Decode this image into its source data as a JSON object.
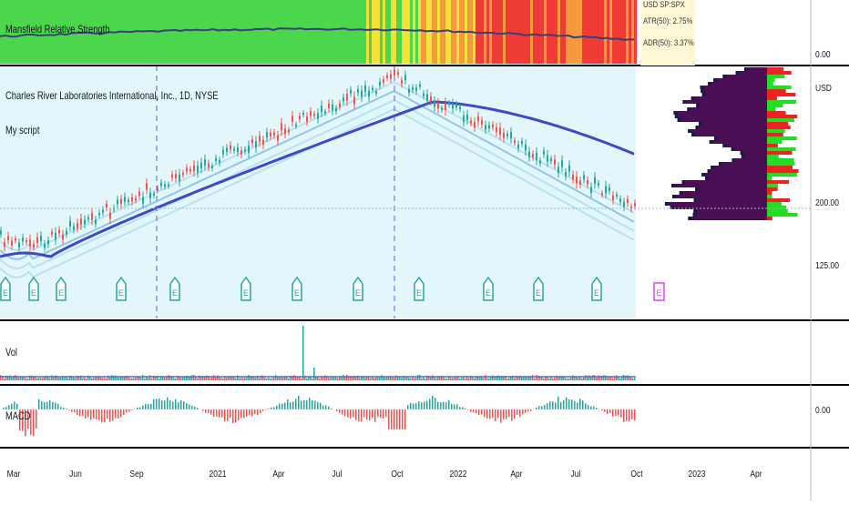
{
  "header": {
    "symbol_title": "Charles River Laboratories International, Inc., 1D, NYSE",
    "script_name": "My script"
  },
  "rs_pane": {
    "title": "Mansfield Relative Strength",
    "scale_label": "0.00",
    "info_lines": [
      "USD  SP:SPX",
      "ATR(50): 2.75%",
      "ADR(50): 3.37%"
    ],
    "colors": {
      "green": "#4cd64c",
      "yellow": "#f2e33a",
      "orange": "#f59a3c",
      "red": "#ef3b36"
    }
  },
  "price_pane": {
    "currency_label": "USD",
    "price_labels": [
      "200.00",
      "125.00"
    ],
    "earnings_marker": "E",
    "earnings_count": 12,
    "colors": {
      "fill": "#e3f7fb",
      "ma_dark": "#3f49c8",
      "ma_light": "#b6e2f2",
      "ma_mid": "#8fc6ea",
      "up": "#26a69a",
      "down": "#ef5350",
      "earnings_future": "#e040fb"
    }
  },
  "volume_pane": {
    "title": "Vol"
  },
  "macd_pane": {
    "title": "MACD",
    "scale_label": "0.00"
  },
  "time_axis": {
    "labels": [
      "Mar",
      "Jun",
      "Sep",
      "2021",
      "Apr",
      "Jul",
      "Oct",
      "2022",
      "Apr",
      "Jul",
      "Oct",
      "2023",
      "Apr"
    ]
  },
  "volume_profile": {
    "colors": {
      "body": "#4a0e55",
      "edge": "#1a1a4a",
      "up": "#22dd22",
      "down": "#ee2222"
    }
  }
}
